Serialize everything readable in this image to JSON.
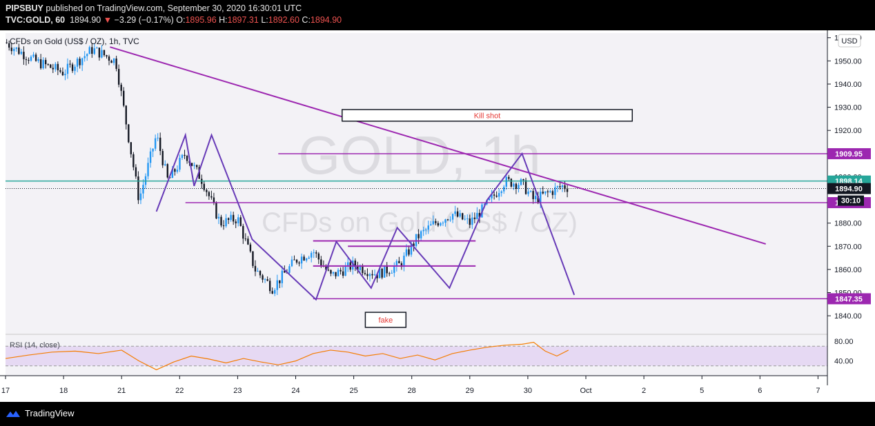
{
  "header": {
    "publisher": "PIPSBUY",
    "published_text": "published on TradingView.com, September 30, 2020 16:30:01 UTC",
    "symbol": "TVC:GOLD, 60",
    "last": "1894.90",
    "change_arrow": "▼",
    "change": "−3.29 (−0.17%)",
    "o_label": "O:",
    "o_value": "1895.96",
    "h_label": "H:",
    "h_value": "1897.31",
    "l_label": "L:",
    "l_value": "1892.60",
    "c_label": "C:",
    "c_value": "1894.90"
  },
  "chart_title": "CFDs on Gold (US$ / OZ), 1h, TVC",
  "watermark": {
    "line1": "GOLD, 1h",
    "line2": "CFDs on Gold (US$ / OZ)"
  },
  "currency_button": "USD",
  "footer": {
    "brand": "TradingView"
  },
  "colors": {
    "background": "#f3f2f6",
    "up": "#2196f3",
    "down": "#131722",
    "trendline": "#9c27b0",
    "zigzag": "#673ab7",
    "teal_line": "#26a69a",
    "rsi_band": "#e6d9f3",
    "rsi_line": "#f57c00",
    "annotation_text": "#e53935"
  },
  "chart_data": {
    "type": "candlestick",
    "timeframe": "1h",
    "ylim": [
      1832,
      1962
    ],
    "y_ticks": [
      1840,
      1850,
      1860,
      1870,
      1880,
      1890,
      1900,
      1910,
      1920,
      1930,
      1940,
      1950,
      1960
    ],
    "y_tick_labels": [
      "1840.00",
      "1850.00",
      "1860.00",
      "1870.00",
      "1880.00",
      "1890.00",
      "1900.00",
      "1910.00",
      "1920.00",
      "1930.00",
      "1940.00",
      "1950.00",
      "1960.00"
    ],
    "x_labels": [
      "17",
      "18",
      "21",
      "22",
      "23",
      "24",
      "25",
      "28",
      "29",
      "30",
      "Oct",
      "2",
      "5",
      "6",
      "7"
    ],
    "x_label_positions": [
      0,
      1,
      2,
      3,
      4,
      5,
      6,
      7,
      8,
      9,
      10,
      11,
      12,
      13,
      14
    ],
    "price_path_days": [
      0,
      0.5,
      1,
      1.5,
      1.9,
      2.3,
      2.6,
      2.8,
      3.1,
      3.4,
      3.7,
      4.0,
      4.3,
      4.6,
      5.0,
      5.3,
      5.6,
      6.0,
      6.4,
      6.8,
      7.1,
      7.4,
      7.7,
      8.0,
      8.3,
      8.6,
      8.9,
      9.1,
      9.35,
      9.6,
      9.75
    ],
    "price_path_close": [
      1958,
      1950,
      1945,
      1955,
      1950,
      1890,
      1918,
      1898,
      1910,
      1898,
      1880,
      1882,
      1860,
      1852,
      1864,
      1868,
      1857,
      1862,
      1858,
      1862,
      1874,
      1880,
      1884,
      1880,
      1888,
      1898,
      1897,
      1890,
      1893,
      1896,
      1895
    ],
    "horizontal_levels": [
      {
        "price": 1909.95,
        "label": "1909.95",
        "x_from": 4.7,
        "color": "#9c27b0"
      },
      {
        "price": 1898.14,
        "label": "1898.14",
        "x_from": 0,
        "color": "#26a69a"
      },
      {
        "price": 1888.83,
        "label": "1888.83",
        "x_from": 3.1,
        "color": "#9c27b0"
      },
      {
        "price": 1847.35,
        "label": "1847.35",
        "x_from": 5.3,
        "color": "#9c27b0"
      }
    ],
    "current_price": {
      "label": "1894.90",
      "countdown": "30:10"
    },
    "trendline": {
      "from": [
        1.8,
        1956
      ],
      "to": [
        13.1,
        1871
      ]
    },
    "zigzag": [
      [
        2.6,
        1885
      ],
      [
        3.1,
        1918
      ],
      [
        3.25,
        1896
      ],
      [
        3.55,
        1918
      ],
      [
        4.25,
        1873
      ],
      [
        5.35,
        1847
      ],
      [
        5.7,
        1872
      ],
      [
        6.3,
        1852
      ],
      [
        6.75,
        1878
      ],
      [
        7.65,
        1852
      ],
      [
        8.3,
        1890
      ],
      [
        8.9,
        1910
      ],
      [
        9.8,
        1849
      ]
    ],
    "small_levels": [
      {
        "price": 1872.3,
        "x_from": 5.3,
        "x_to": 8.1
      },
      {
        "price": 1870.0,
        "x_from": 5.9,
        "x_to": 7.0
      },
      {
        "price": 1861.5,
        "x_from": 5.3,
        "x_to": 8.1
      }
    ],
    "annotations": [
      {
        "text": "Kill shot",
        "x_from": 5.8,
        "x_to": 10.8,
        "price_top": 1929,
        "price_bottom": 1924
      },
      {
        "text": "fake",
        "x_from": 6.2,
        "x_to": 6.9,
        "price_top": 1841.5,
        "price_bottom": 1835
      }
    ],
    "rsi": {
      "title": "RSI (14, close)",
      "ylim": [
        10,
        90
      ],
      "y_tick_labels": [
        "80.00",
        "40.00"
      ],
      "band": [
        30,
        70
      ],
      "x": [
        0,
        0.4,
        0.8,
        1.2,
        1.6,
        2.0,
        2.3,
        2.6,
        2.9,
        3.2,
        3.5,
        3.8,
        4.1,
        4.4,
        4.7,
        5.0,
        5.3,
        5.6,
        5.9,
        6.2,
        6.5,
        6.8,
        7.1,
        7.4,
        7.7,
        8.0,
        8.3,
        8.6,
        8.9,
        9.1,
        9.3,
        9.5,
        9.7
      ],
      "values": [
        45,
        52,
        58,
        60,
        55,
        62,
        40,
        22,
        38,
        50,
        44,
        36,
        45,
        38,
        32,
        40,
        55,
        62,
        58,
        50,
        55,
        45,
        52,
        42,
        55,
        62,
        68,
        72,
        74,
        78,
        60,
        50,
        62
      ]
    }
  }
}
